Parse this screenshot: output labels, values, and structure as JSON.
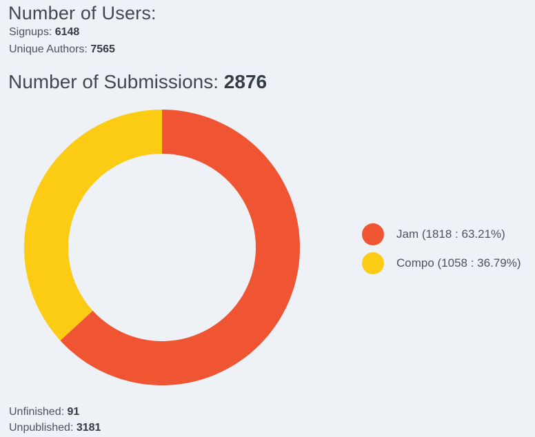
{
  "users": {
    "heading": "Number of Users:",
    "signups_label": "Signups:",
    "signups_value": "6148",
    "authors_label": "Unique Authors:",
    "authors_value": "7565"
  },
  "submissions": {
    "heading": "Number of Submissions:",
    "total": "2876"
  },
  "footer": {
    "unfinished_label": "Unfinished:",
    "unfinished_value": "91",
    "unpublished_label": "Unpublished:",
    "unpublished_value": "3181"
  },
  "chart_data": {
    "type": "pie",
    "variant": "donut",
    "categories": [
      "Jam",
      "Compo"
    ],
    "values": [
      1818,
      1058
    ],
    "colors": [
      "#ef5533",
      "#fccb14"
    ],
    "legend": [
      "Jam (1818 : 63.21%)",
      "Compo (1058 : 36.79%)"
    ],
    "legend_position": "right"
  }
}
